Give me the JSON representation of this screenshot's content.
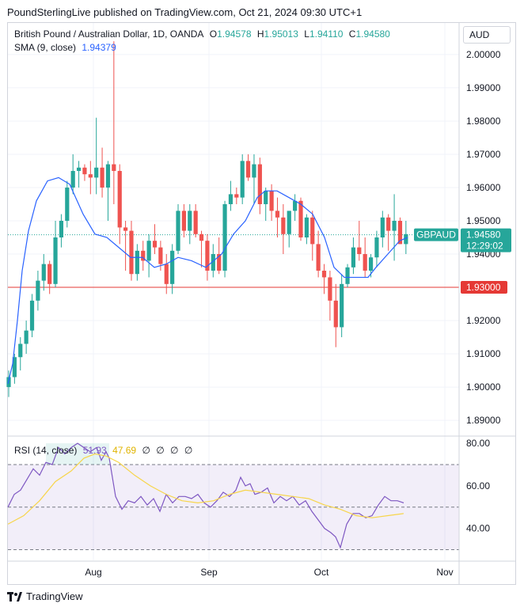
{
  "header": {
    "text": "PoundSterlingLive published on TradingView.com, Oct 21, 2024 09:30 UTC+1"
  },
  "symbol": {
    "title": "British Pound / Australian Dollar, 1D, OANDA",
    "o_label": "O",
    "o_value": "1.94578",
    "h_label": "H",
    "h_value": "1.95013",
    "l_label": "L",
    "l_value": "1.94110",
    "c_label": "C",
    "c_value": "1.94580",
    "currency": "AUD"
  },
  "sma": {
    "label": "SMA (9, close)",
    "value": "1.94379"
  },
  "rsi": {
    "label": "RSI (14, close)",
    "value1": "51.93",
    "value2": "47.69",
    "extras": [
      "∅",
      "∅",
      "∅",
      "∅"
    ]
  },
  "price_tag": {
    "symbol": "GBPAUD",
    "price": "1.94580",
    "countdown": "12:29:02"
  },
  "level_tag": {
    "price": "1.93000"
  },
  "footer": {
    "brand": "TradingView"
  },
  "colors": {
    "up": "#26a69a",
    "down": "#ef5350",
    "sma": "#2962ff",
    "rsi": "#7e57c2",
    "rsi_ma": "#f7d54a",
    "level": "#e53935"
  },
  "chart_data": [
    {
      "type": "candlestick",
      "title": "British Pound / Australian Dollar, 1D, OANDA",
      "x_ticks": [
        "Aug",
        "Sep",
        "Oct",
        "Nov"
      ],
      "y_ticks": [
        "2.00000",
        "1.99000",
        "1.98000",
        "1.97000",
        "1.96000",
        "1.95000",
        "1.94000",
        "1.93000",
        "1.92000",
        "1.91000",
        "1.90000",
        "1.89000"
      ],
      "ylim": [
        1.8855,
        2.0095
      ],
      "horizontal_line": 1.93,
      "ohlc": [
        [
          1.9,
          1.905,
          1.897,
          1.903
        ],
        [
          1.903,
          1.91,
          1.901,
          1.909
        ],
        [
          1.909,
          1.915,
          1.905,
          1.913
        ],
        [
          1.913,
          1.92,
          1.91,
          1.917
        ],
        [
          1.917,
          1.928,
          1.915,
          1.926
        ],
        [
          1.926,
          1.935,
          1.923,
          1.932
        ],
        [
          1.932,
          1.94,
          1.929,
          1.937
        ],
        [
          1.937,
          1.938,
          1.928,
          1.931
        ],
        [
          1.931,
          1.95,
          1.93,
          1.945
        ],
        [
          1.945,
          1.952,
          1.942,
          1.95
        ],
        [
          1.95,
          1.962,
          1.948,
          1.96
        ],
        [
          1.96,
          1.97,
          1.958,
          1.965
        ],
        [
          1.965,
          1.968,
          1.96,
          1.966
        ],
        [
          1.966,
          1.967,
          1.962,
          1.964
        ],
        [
          1.964,
          1.968,
          1.958,
          1.963
        ],
        [
          1.963,
          1.981,
          1.958,
          1.966
        ],
        [
          1.966,
          1.972,
          1.957,
          1.96
        ],
        [
          1.96,
          1.968,
          1.95,
          1.967
        ],
        [
          1.967,
          2.004,
          1.955,
          1.965
        ],
        [
          1.965,
          1.967,
          1.943,
          1.948
        ],
        [
          1.948,
          1.95,
          1.935,
          1.947
        ],
        [
          1.947,
          1.95,
          1.932,
          1.934
        ],
        [
          1.934,
          1.943,
          1.932,
          1.941
        ],
        [
          1.941,
          1.944,
          1.935,
          1.938
        ],
        [
          1.938,
          1.946,
          1.933,
          1.944
        ],
        [
          1.944,
          1.949,
          1.94,
          1.942
        ],
        [
          1.942,
          1.944,
          1.935,
          1.937
        ],
        [
          1.937,
          1.94,
          1.928,
          1.931
        ],
        [
          1.931,
          1.943,
          1.928,
          1.941
        ],
        [
          1.941,
          1.955,
          1.94,
          1.953
        ],
        [
          1.953,
          1.955,
          1.945,
          1.947
        ],
        [
          1.947,
          1.955,
          1.943,
          1.953
        ],
        [
          1.953,
          1.955,
          1.945,
          1.946
        ],
        [
          1.946,
          1.947,
          1.936,
          1.944
        ],
        [
          1.944,
          1.946,
          1.932,
          1.935
        ],
        [
          1.935,
          1.943,
          1.933,
          1.94
        ],
        [
          1.94,
          1.945,
          1.934,
          1.935
        ],
        [
          1.935,
          1.956,
          1.933,
          1.955
        ],
        [
          1.955,
          1.962,
          1.953,
          1.958
        ],
        [
          1.958,
          1.96,
          1.955,
          1.957
        ],
        [
          1.957,
          1.97,
          1.955,
          1.968
        ],
        [
          1.968,
          1.97,
          1.962,
          1.963
        ],
        [
          1.963,
          1.97,
          1.955,
          1.967
        ],
        [
          1.967,
          1.969,
          1.952,
          1.955
        ],
        [
          1.955,
          1.96,
          1.95,
          1.959
        ],
        [
          1.959,
          1.961,
          1.95,
          1.953
        ],
        [
          1.953,
          1.957,
          1.945,
          1.951
        ],
        [
          1.951,
          1.955,
          1.94,
          1.946
        ],
        [
          1.946,
          1.952,
          1.942,
          1.953
        ],
        [
          1.953,
          1.958,
          1.95,
          1.956
        ],
        [
          1.956,
          1.957,
          1.944,
          1.945
        ],
        [
          1.945,
          1.952,
          1.943,
          1.951
        ],
        [
          1.951,
          1.953,
          1.938,
          1.943
        ],
        [
          1.943,
          1.947,
          1.933,
          1.935
        ],
        [
          1.935,
          1.937,
          1.928,
          1.933
        ],
        [
          1.933,
          1.935,
          1.92,
          1.926
        ],
        [
          1.926,
          1.931,
          1.912,
          1.918
        ],
        [
          1.918,
          1.934,
          1.915,
          1.931
        ],
        [
          1.931,
          1.937,
          1.93,
          1.936
        ],
        [
          1.936,
          1.945,
          1.934,
          1.942
        ],
        [
          1.942,
          1.95,
          1.938,
          1.94
        ],
        [
          1.94,
          1.945,
          1.933,
          1.935
        ],
        [
          1.935,
          1.94,
          1.933,
          1.939
        ],
        [
          1.939,
          1.947,
          1.936,
          1.945
        ],
        [
          1.945,
          1.953,
          1.942,
          1.951
        ],
        [
          1.951,
          1.952,
          1.941,
          1.947
        ],
        [
          1.947,
          1.958,
          1.938,
          1.95
        ],
        [
          1.95,
          1.951,
          1.943,
          1.943
        ],
        [
          1.943,
          1.95,
          1.94,
          1.946
        ]
      ],
      "sma_9": [
        [
          0,
          1.901
        ],
        [
          6,
          1.907
        ],
        [
          12,
          1.92
        ],
        [
          18,
          1.935
        ],
        [
          26,
          1.947
        ],
        [
          36,
          1.956
        ],
        [
          50,
          1.962
        ],
        [
          64,
          1.963
        ],
        [
          78,
          1.961
        ],
        [
          95,
          1.952
        ],
        [
          110,
          1.946
        ],
        [
          125,
          1.945
        ],
        [
          140,
          1.942
        ],
        [
          155,
          1.939
        ],
        [
          170,
          1.939
        ],
        [
          185,
          1.936
        ],
        [
          200,
          1.937
        ],
        [
          215,
          1.939
        ],
        [
          232,
          1.938
        ],
        [
          250,
          1.936
        ],
        [
          270,
          1.94
        ],
        [
          285,
          1.946
        ],
        [
          300,
          1.95
        ],
        [
          315,
          1.957
        ],
        [
          325,
          1.959
        ],
        [
          340,
          1.959
        ],
        [
          355,
          1.957
        ],
        [
          370,
          1.955
        ],
        [
          385,
          1.952
        ],
        [
          400,
          1.945
        ],
        [
          412,
          1.936
        ],
        [
          425,
          1.933
        ],
        [
          440,
          1.933
        ],
        [
          455,
          1.933
        ],
        [
          465,
          1.936
        ],
        [
          480,
          1.94
        ],
        [
          495,
          1.944
        ],
        [
          505,
          1.945
        ]
      ]
    },
    {
      "type": "line",
      "title": "RSI (14, close)",
      "y_ticks": [
        "80.00",
        "60.00",
        "40.00"
      ],
      "ylim": [
        25,
        83
      ],
      "bands": [
        70,
        50,
        30
      ],
      "series": [
        {
          "values": [
            [
              0,
              50
            ],
            [
              8,
              56
            ],
            [
              16,
              58
            ],
            [
              24,
              63
            ],
            [
              32,
              68
            ],
            [
              40,
              65
            ],
            [
              48,
              71
            ],
            [
              56,
              70
            ],
            [
              64,
              78
            ],
            [
              72,
              75
            ],
            [
              80,
              78
            ],
            [
              88,
              80
            ],
            [
              96,
              78
            ],
            [
              104,
              76
            ],
            [
              112,
              78
            ],
            [
              118,
              72
            ],
            [
              124,
              76
            ],
            [
              128,
              73
            ],
            [
              136,
              55
            ],
            [
              144,
              49
            ],
            [
              152,
              53
            ],
            [
              160,
              52
            ],
            [
              168,
              55
            ],
            [
              176,
              51
            ],
            [
              184,
              54
            ],
            [
              192,
              48
            ],
            [
              200,
              56
            ],
            [
              208,
              52
            ],
            [
              216,
              55
            ],
            [
              224,
              55
            ],
            [
              232,
              54
            ],
            [
              240,
              56
            ],
            [
              248,
              52
            ],
            [
              256,
              50
            ],
            [
              264,
              53
            ],
            [
              272,
              57
            ],
            [
              280,
              55
            ],
            [
              288,
              58
            ],
            [
              294,
              64
            ],
            [
              300,
              60
            ],
            [
              306,
              61
            ],
            [
              312,
              56
            ],
            [
              320,
              57
            ],
            [
              328,
              59
            ],
            [
              336,
              52
            ],
            [
              344,
              55
            ],
            [
              352,
              53
            ],
            [
              360,
              55
            ],
            [
              368,
              51
            ],
            [
              376,
              53
            ],
            [
              384,
              48
            ],
            [
              392,
              44
            ],
            [
              400,
              40
            ],
            [
              408,
              38
            ],
            [
              414,
              36
            ],
            [
              420,
              31
            ],
            [
              428,
              42
            ],
            [
              436,
              47
            ],
            [
              444,
              47
            ],
            [
              452,
              45
            ],
            [
              460,
              46
            ],
            [
              468,
              51
            ],
            [
              476,
              55
            ],
            [
              484,
              53
            ],
            [
              492,
              53
            ],
            [
              500,
              52
            ]
          ]
        },
        {
          "values": [
            [
              0,
              42
            ],
            [
              20,
              46
            ],
            [
              40,
              53
            ],
            [
              60,
              62
            ],
            [
              80,
              67
            ],
            [
              96,
              73
            ],
            [
              110,
              75
            ],
            [
              124,
              74
            ],
            [
              140,
              71
            ],
            [
              160,
              65
            ],
            [
              180,
              60
            ],
            [
              200,
              56
            ],
            [
              220,
              53
            ],
            [
              240,
              52
            ],
            [
              260,
              53
            ],
            [
              280,
              56
            ],
            [
              300,
              58
            ],
            [
              320,
              57
            ],
            [
              340,
              56
            ],
            [
              360,
              55
            ],
            [
              380,
              54
            ],
            [
              400,
              51
            ],
            [
              420,
              49
            ],
            [
              440,
              46
            ],
            [
              460,
              45
            ],
            [
              480,
              46
            ],
            [
              500,
              47
            ]
          ]
        }
      ]
    }
  ]
}
